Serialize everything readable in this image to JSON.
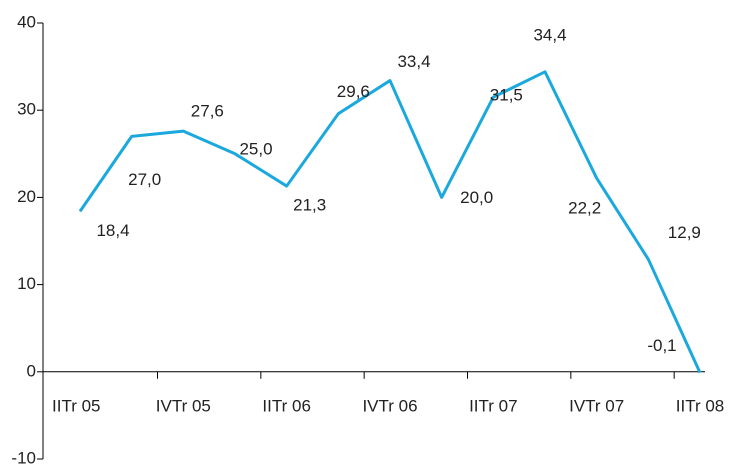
{
  "chart_data": {
    "type": "line",
    "categories": [
      "IITr 05",
      null,
      "IVTr 05",
      null,
      "IITr 06",
      null,
      "IVTr 06",
      null,
      "IITr 07",
      null,
      "IVTr 07",
      null,
      "IITr 08"
    ],
    "series": [
      {
        "color": "#1ba9dd",
        "values": [
          18.4,
          27.0,
          27.6,
          25.0,
          21.3,
          29.6,
          33.4,
          20.0,
          31.5,
          34.4,
          22.2,
          12.9,
          -0.1
        ],
        "value_labels": [
          "18,4",
          "27,0",
          "27,6",
          "25,0",
          "21,3",
          "29,6",
          "33,4",
          "20,0",
          "31,5",
          "34,4",
          "22,2",
          "12,9",
          "-0,1"
        ]
      }
    ],
    "ylim": [
      -10,
      40
    ],
    "yticks": [
      -10,
      0,
      10,
      20,
      30,
      40
    ]
  }
}
